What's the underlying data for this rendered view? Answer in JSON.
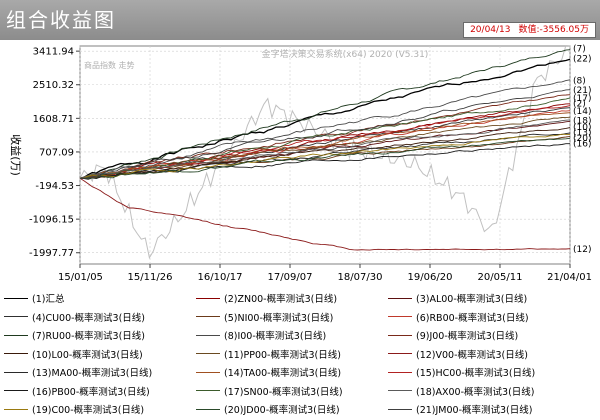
{
  "window": {
    "title": "组合收益图",
    "status_date": "20/04/13",
    "status_value": "数值:-3556.05万"
  },
  "chart_data": {
    "type": "line",
    "watermark": "金字塔决策交易系统(x64) 2020 (V5.31)",
    "subtitle": "商品指数 走势",
    "ylabel": "收益(万)",
    "ylim": [
      -2300,
      3550
    ],
    "y_ticks": [
      3411.94,
      2510.32,
      1608.71,
      707.09,
      -194.53,
      -1096.15,
      -1997.77
    ],
    "y_tick_labels": [
      "3411.94",
      "2510.32",
      "1608.71",
      "707.09",
      "-194.53",
      "-1096.15",
      "-1997.77"
    ],
    "x_ticks": [
      "15/01/05",
      "15/11/26",
      "16/10/17",
      "17/09/07",
      "18/07/30",
      "19/06/20",
      "20/05/11",
      "21/04/01"
    ],
    "x_tick_positions": [
      0,
      0.1429,
      0.2857,
      0.4286,
      0.5714,
      0.7143,
      0.8571,
      1
    ],
    "right_labels": [
      "(7)",
      "(22)",
      "(8)",
      "(21)",
      "(17)",
      "(2)",
      "(14)",
      "(18)",
      "(10)",
      "(13)",
      "(20)",
      "(16)",
      "(12)"
    ],
    "right_label_values": [
      3480,
      3220,
      2620,
      2370,
      2150,
      2010,
      1800,
      1550,
      1370,
      1230,
      1080,
      930,
      -1900
    ],
    "series": [
      {
        "name": "(1)汇总",
        "color": "#000000",
        "end": 3220,
        "vol": 100,
        "seed": 1
      },
      {
        "name": "(2)ZN00-概率测试3(日线)",
        "color": "#8b0000",
        "end": 2010,
        "vol": 85,
        "seed": 2
      },
      {
        "name": "(3)AL00-概率测试3(日线)",
        "color": "#5c1010",
        "end": 1500,
        "vol": 70,
        "seed": 3
      },
      {
        "name": "(4)CU00-概率测试3(日线)",
        "color": "#303030",
        "end": 1900,
        "vol": 80,
        "seed": 4
      },
      {
        "name": "(5)NI00-概率测试3(日线)",
        "color": "#6b3a1a",
        "end": 1100,
        "vol": 75,
        "seed": 5
      },
      {
        "name": "(6)RB00-概率测试3(日线)",
        "color": "#c0392b",
        "end": 1800,
        "vol": 90,
        "seed": 6
      },
      {
        "name": "(7)RU00-概率测试3(日线)",
        "color": "#1f3a1f",
        "end": 3480,
        "vol": 95,
        "seed": 7
      },
      {
        "name": "(8)I00-概率测试3(日线)",
        "color": "#4a4a4a",
        "end": 2620,
        "vol": 90,
        "seed": 8
      },
      {
        "name": "(9)J00-概率测试3(日线)",
        "color": "#7a2a1a",
        "end": 2250,
        "vol": 85,
        "seed": 9
      },
      {
        "name": "(10)L00-概率测试3(日线)",
        "color": "#3a1a0a",
        "end": 1370,
        "vol": 70,
        "seed": 10
      },
      {
        "name": "(11)PP00-概率测试3(日线)",
        "color": "#6a4a20",
        "end": 1650,
        "vol": 75,
        "seed": 11
      },
      {
        "name": "(12)V00-概率测试3(日线)",
        "color": "#8b1a1a",
        "end": -1900,
        "vol": 40,
        "seed": 12
      },
      {
        "name": "(13)MA00-概率测试3(日线)",
        "color": "#2a2a2a",
        "end": 1230,
        "vol": 80,
        "seed": 13
      },
      {
        "name": "(14)TA00-概率测试3(日线)",
        "color": "#a05020",
        "end": 1800,
        "vol": 80,
        "seed": 14
      },
      {
        "name": "(15)HC00-概率测试3(日线)",
        "color": "#b22222",
        "end": 1950,
        "vol": 85,
        "seed": 15
      },
      {
        "name": "(16)PB00-概率测试3(日线)",
        "color": "#1a1a1a",
        "end": 930,
        "vol": 70,
        "seed": 16
      },
      {
        "name": "(17)SN00-概率测试3(日线)",
        "color": "#3b5b2b",
        "end": 2150,
        "vol": 90,
        "seed": 17
      },
      {
        "name": "(18)AX00-概率测试3(日线)",
        "color": "#5a5a5a",
        "end": 1550,
        "vol": 75,
        "seed": 18
      },
      {
        "name": "(19)C00-概率测试3(日线)",
        "color": "#9a7a10",
        "end": 1200,
        "vol": 70,
        "seed": 19
      },
      {
        "name": "(20)JD00-概率测试3(日线)",
        "color": "#2a4a2a",
        "end": 1080,
        "vol": 75,
        "seed": 20
      },
      {
        "name": "(21)JM00-概率测试3(日线)",
        "color": "#404040",
        "end": 2370,
        "vol": 85,
        "seed": 21
      }
    ],
    "benchmark": {
      "color": "#c0c0c0"
    },
    "grid": true
  }
}
